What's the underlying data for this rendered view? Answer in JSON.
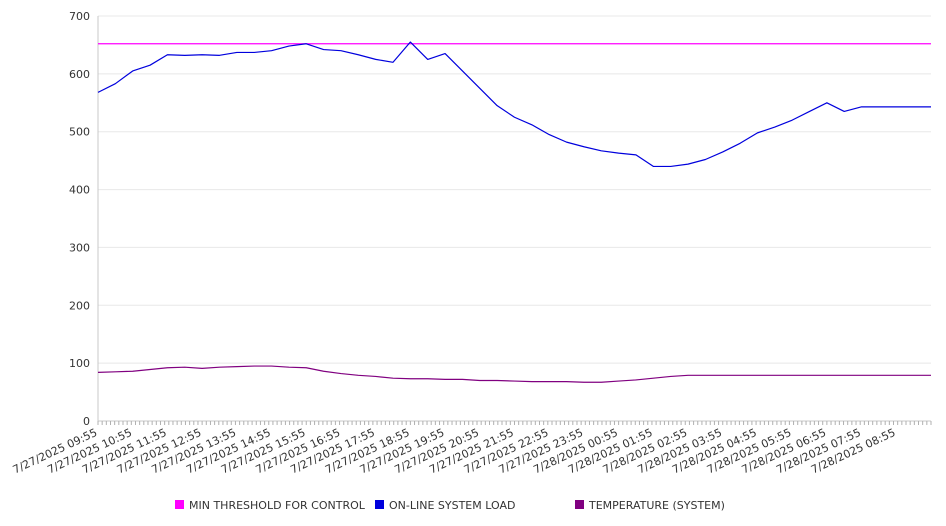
{
  "chart_data": {
    "type": "line",
    "title": "",
    "xlabel": "",
    "ylabel": "",
    "ylim": [
      0,
      700
    ],
    "yticks": [
      0,
      100,
      200,
      300,
      400,
      500,
      600,
      700
    ],
    "xtick_labels": [
      "7/27/2025 09:55",
      "7/27/2025 10:55",
      "7/27/2025 11:55",
      "7/27/2025 12:55",
      "7/27/2025 13:55",
      "7/27/2025 14:55",
      "7/27/2025 15:55",
      "7/27/2025 16:55",
      "7/27/2025 17:55",
      "7/27/2025 18:55",
      "7/27/2025 19:55",
      "7/27/2025 20:55",
      "7/27/2025 21:55",
      "7/27/2025 22:55",
      "7/27/2025 23:55",
      "7/28/2025 00:55",
      "7/28/2025 01:55",
      "7/28/2025 02:55",
      "7/28/2025 03:55",
      "7/28/2025 04:55",
      "7/28/2025 05:55",
      "7/28/2025 06:55",
      "7/28/2025 07:55",
      "7/28/2025 08:55"
    ],
    "x_hours": [
      0,
      0.5,
      1,
      1.5,
      2,
      2.5,
      3,
      3.5,
      4,
      4.5,
      5,
      5.5,
      6,
      6.5,
      7,
      7.5,
      8,
      8.5,
      9,
      9.5,
      10,
      10.5,
      11,
      11.5,
      12,
      12.5,
      13,
      13.5,
      14,
      14.5,
      15,
      15.5,
      16,
      16.5,
      17,
      17.5,
      18,
      18.5,
      19,
      19.5,
      20,
      20.5,
      21,
      21.5,
      22,
      22.5,
      23,
      23.5,
      24
    ],
    "x_max_hours": 24,
    "grid": true,
    "legend_position": "bottom",
    "series": [
      {
        "name": "MIN THRESHOLD FOR CONTROL",
        "color": "#ff00ff",
        "values": [
          652,
          652,
          652,
          652,
          652,
          652,
          652,
          652,
          652,
          652,
          652,
          652,
          652,
          652,
          652,
          652,
          652,
          652,
          652,
          652,
          652,
          652,
          652,
          652,
          652,
          652,
          652,
          652,
          652,
          652,
          652,
          652,
          652,
          652,
          652,
          652,
          652,
          652,
          652,
          652,
          652,
          652,
          652,
          652,
          652,
          652,
          652,
          652,
          652
        ]
      },
      {
        "name": "ON-LINE SYSTEM LOAD",
        "color": "#0000dd",
        "values": [
          568,
          583,
          605,
          615,
          633,
          632,
          633,
          632,
          637,
          637,
          640,
          648,
          652,
          642,
          640,
          633,
          625,
          620,
          655,
          625,
          635,
          605,
          575,
          545,
          525,
          512,
          495,
          482,
          474,
          467,
          463,
          460,
          440,
          440,
          444,
          452,
          465,
          480,
          498,
          508,
          520,
          535,
          550,
          535,
          543,
          543,
          543,
          543,
          543
        ]
      },
      {
        "name": "TEMPERATURE (SYSTEM)",
        "color": "#800080",
        "values": [
          84,
          85,
          86,
          89,
          92,
          93,
          91,
          93,
          94,
          95,
          95,
          93,
          92,
          86,
          82,
          79,
          77,
          74,
          73,
          73,
          72,
          72,
          70,
          70,
          69,
          68,
          68,
          68,
          67,
          67,
          69,
          71,
          74,
          77,
          79,
          79,
          79,
          79,
          79,
          79,
          79,
          79,
          79,
          79,
          79,
          79,
          79,
          79,
          79
        ]
      }
    ]
  }
}
